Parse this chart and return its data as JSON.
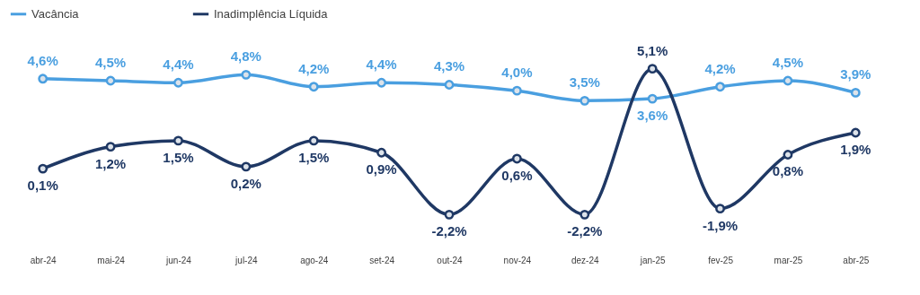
{
  "chart_data": {
    "type": "line",
    "categories": [
      "abr-24",
      "mai-24",
      "jun-24",
      "jul-24",
      "ago-24",
      "set-24",
      "out-24",
      "nov-24",
      "dez-24",
      "jan-25",
      "fev-25",
      "mar-25",
      "abr-25"
    ],
    "series": [
      {
        "name": "Vacância",
        "color": "#4a9fe0",
        "values": [
          4.6,
          4.5,
          4.4,
          4.8,
          4.2,
          4.4,
          4.3,
          4.0,
          3.5,
          3.6,
          4.2,
          4.5,
          3.9
        ],
        "value_labels": [
          "4,6%",
          "4,5%",
          "4,4%",
          "4,8%",
          "4,2%",
          "4,4%",
          "4,3%",
          "4,0%",
          "3,5%",
          "3,6%",
          "4,2%",
          "4,5%",
          "3,9%"
        ]
      },
      {
        "name": "Inadimplência Líquida",
        "color": "#1f3864",
        "values": [
          0.1,
          1.2,
          1.5,
          0.2,
          1.5,
          0.9,
          -2.2,
          0.6,
          -2.2,
          5.1,
          -1.9,
          0.8,
          1.9
        ],
        "value_labels": [
          "0,1%",
          "1,2%",
          "1,5%",
          "0,2%",
          "1,5%",
          "0,9%",
          "-2,2%",
          "0,6%",
          "-2,2%",
          "5,1%",
          "-1,9%",
          "0,8%",
          "1,9%"
        ]
      }
    ],
    "legend": "top",
    "marker": "circle",
    "line_style": "solid",
    "grid": false,
    "tick_labels": "x"
  }
}
